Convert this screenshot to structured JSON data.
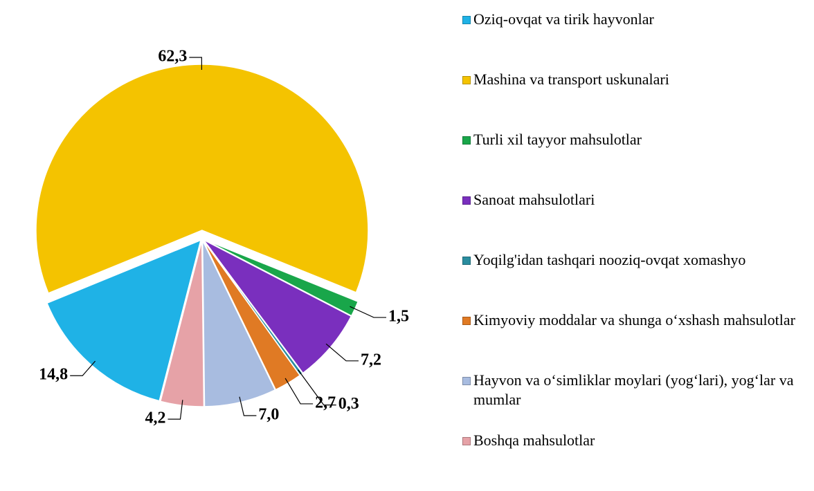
{
  "chart_data": {
    "type": "pie",
    "categories": [
      "Oziq-ovqat va tirik hayvonlar",
      "Mashina va transport uskunalari",
      "Turli xil tayyor mahsulotlar",
      "Sanoat mahsulotlari",
      "Yoqilg'idan tashqari nooziq-ovqat xomashyo",
      "Kimyoviy moddalar va shunga o‘xshash mahsulotlar",
      "Hayvon va o‘simliklar moylari (yog‘lari), yog‘lar va mumlar",
      "Boshqa mahsulotlar"
    ],
    "values": [
      14.8,
      62.3,
      1.5,
      7.2,
      0.3,
      2.7,
      7.0,
      4.2
    ],
    "value_labels": [
      "14,8",
      "62,3",
      "1,5",
      "7,2",
      "0,3",
      "2,7",
      "7,0",
      "4,2"
    ],
    "colors": [
      "#1fb2e6",
      "#f4c300",
      "#19a64a",
      "#7a2fbe",
      "#2a8d9f",
      "#e07a24",
      "#a8bce0",
      "#e6a2a7"
    ],
    "legend": "right"
  }
}
